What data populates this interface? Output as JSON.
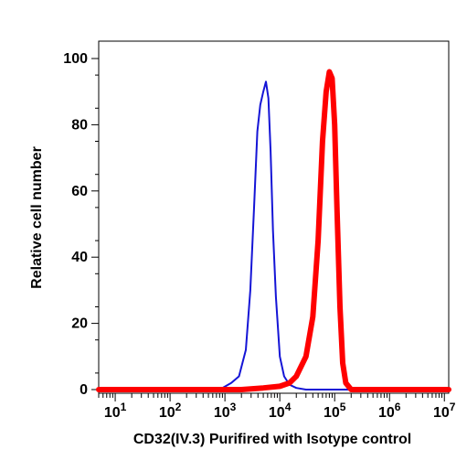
{
  "chart_data": {
    "type": "line",
    "xlabel": "CD32(IV.3) Purifired with Isotype control",
    "ylabel": "Relative cell number",
    "x_scale": "log",
    "xlim": [
      5,
      12000000.0
    ],
    "ylim": [
      0,
      100
    ],
    "x_ticks": [
      {
        "value": 10,
        "base": "10",
        "exp": "1"
      },
      {
        "value": 100,
        "base": "10",
        "exp": "2"
      },
      {
        "value": 1000,
        "base": "10",
        "exp": "3"
      },
      {
        "value": 10000,
        "base": "10",
        "exp": "4"
      },
      {
        "value": 100000,
        "base": "10",
        "exp": "5"
      },
      {
        "value": 1000000,
        "base": "10",
        "exp": "6"
      },
      {
        "value": 10000000,
        "base": "10",
        "exp": "7"
      }
    ],
    "y_ticks": [
      0,
      20,
      40,
      60,
      80,
      100
    ],
    "grid": false,
    "legend": "none",
    "series": [
      {
        "color": "#1515d6",
        "stroke_weight": "thin",
        "x": [
          5,
          100,
          600,
          900,
          1300,
          1800,
          2400,
          2900,
          3400,
          3900,
          4400,
          5000,
          5600,
          6200,
          6800,
          7500,
          8500,
          10000,
          12000,
          15000,
          20000,
          30000,
          12000000.0
        ],
        "y": [
          0,
          0,
          0,
          0.5,
          2,
          4,
          12,
          30,
          55,
          78,
          86,
          90,
          93,
          88,
          72,
          48,
          28,
          10,
          4,
          1.5,
          0.5,
          0,
          0
        ]
      },
      {
        "color": "#ff0000",
        "stroke_weight": "thick",
        "x": [
          5,
          2000,
          5000,
          10000,
          15000,
          20000,
          30000,
          40000,
          50000,
          60000,
          70000,
          80000,
          90000,
          100000,
          110000,
          125000,
          140000,
          160000,
          200000,
          12000000.0
        ],
        "y": [
          0,
          0,
          0.5,
          1,
          2,
          4,
          10,
          22,
          45,
          75,
          90,
          96,
          94,
          80,
          55,
          25,
          8,
          2,
          0,
          0
        ]
      }
    ]
  }
}
